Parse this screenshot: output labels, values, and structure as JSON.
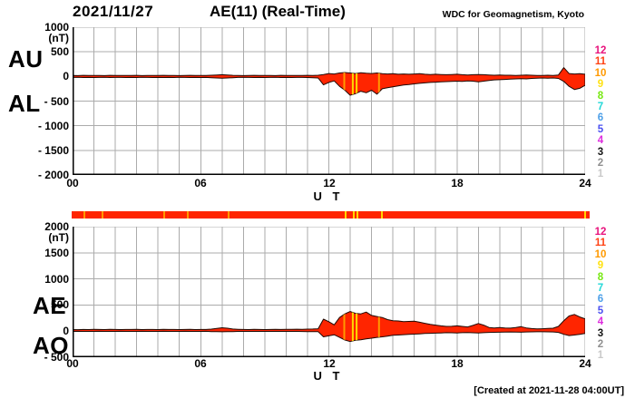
{
  "header": {
    "date": "2021/11/27",
    "title": "AE(11) (Real-Time)",
    "source": "WDC for Geomagnetism, Kyoto"
  },
  "footer": {
    "created": "[Created at 2021-11-28 04:00UT]"
  },
  "colors": {
    "trace_fill": "#FF2500",
    "trace_outline": "#1E0800",
    "grid": "#ABABAB",
    "axis": "#000000",
    "stripe_orange": "#FF9900",
    "stripe_yellow": "#FFD700",
    "availability_bar": "#FF2500"
  },
  "panels": {
    "top": {
      "left_labels": [
        "AU",
        "AL"
      ],
      "y_unit": "(nT)",
      "y_ticks": [
        "1000",
        "500",
        "0",
        "-500",
        "-1000",
        "-1500",
        "-2000"
      ],
      "x_ticks": [
        "00",
        "06",
        "12",
        "18",
        "24"
      ],
      "x_label": "U T"
    },
    "bottom": {
      "left_labels": [
        "AE",
        "AO"
      ],
      "y_unit": "(nT)",
      "y_ticks": [
        "2000",
        "1500",
        "1000",
        "500",
        "0",
        "-500"
      ],
      "x_ticks": [
        "00",
        "06",
        "12",
        "18",
        "24"
      ],
      "x_label": "U T"
    }
  },
  "station_scale": {
    "entries": [
      {
        "n": "12",
        "color": "#E8127C"
      },
      {
        "n": "11",
        "color": "#FF4112"
      },
      {
        "n": "10",
        "color": "#FF9900"
      },
      {
        "n": "9",
        "color": "#FFE212"
      },
      {
        "n": "8",
        "color": "#77E812"
      },
      {
        "n": "7",
        "color": "#22D7D7"
      },
      {
        "n": "6",
        "color": "#4C9FE8"
      },
      {
        "n": "5",
        "color": "#4B50F0"
      },
      {
        "n": "4",
        "color": "#DD2BDD"
      },
      {
        "n": "3",
        "color": "#141414"
      },
      {
        "n": "2",
        "color": "#8F8F8F"
      },
      {
        "n": "1",
        "color": "#C9C9C9"
      }
    ]
  },
  "plot_stripes": [
    {
      "h": 12.72,
      "color": "#FF9900"
    },
    {
      "h": 13.12,
      "color": "#FFD700"
    },
    {
      "h": 13.3,
      "color": "#FFD700"
    },
    {
      "h": 14.35,
      "color": "#FF9900"
    }
  ],
  "availability_stripes": [
    {
      "h": 0.45,
      "color": "#FF9900"
    },
    {
      "h": 1.3,
      "color": "#FF9900"
    },
    {
      "h": 4.2,
      "color": "#FF9900"
    },
    {
      "h": 5.3,
      "color": "#FF9900"
    },
    {
      "h": 7.2,
      "color": "#FF9900"
    },
    {
      "h": 12.7,
      "color": "#FFD700"
    },
    {
      "h": 13.1,
      "color": "#FFD700"
    },
    {
      "h": 13.25,
      "color": "#FFD700"
    },
    {
      "h": 14.4,
      "color": "#FFD700"
    },
    {
      "h": 23.9,
      "color": "#FFD700"
    }
  ],
  "chart_data": {
    "type": "area",
    "title": "AE(11) (Real-Time) 2021/11/27",
    "xlabel": "U T",
    "x_unit": "hours UT",
    "x_range": [
      0,
      24
    ],
    "x_step_hours": 0.25,
    "x_tick_labels": [
      "00",
      "06",
      "12",
      "18",
      "24"
    ],
    "grid": true,
    "station_count_nominal": 11,
    "panels": [
      {
        "name": "AU / AL",
        "ylabel": "nT",
        "ylim": [
          -2000,
          1000
        ],
        "yticks": [
          1000,
          500,
          0,
          -500,
          -1000,
          -1500,
          -2000
        ],
        "fill_between_series": true,
        "series": [
          {
            "name": "AU",
            "values": [
              20,
              18,
              22,
              19,
              21,
              20,
              18,
              22,
              20,
              19,
              21,
              20,
              22,
              18,
              20,
              21,
              19,
              22,
              20,
              21,
              18,
              20,
              22,
              19,
              21,
              20,
              25,
              30,
              35,
              30,
              22,
              20,
              18,
              20,
              22,
              19,
              21,
              20,
              18,
              22,
              20,
              21,
              19,
              20,
              22,
              20,
              25,
              40,
              60,
              50,
              70,
              80,
              70,
              60,
              75,
              65,
              60,
              70,
              55,
              50,
              55,
              45,
              50,
              45,
              50,
              55,
              45,
              40,
              45,
              40,
              35,
              40,
              45,
              35,
              30,
              35,
              40,
              35,
              30,
              25,
              30,
              25,
              25,
              20,
              25,
              30,
              25,
              20,
              20,
              25,
              20,
              30,
              180,
              60,
              50,
              55,
              45
            ]
          },
          {
            "name": "AL",
            "values": [
              -20,
              -18,
              -22,
              -19,
              -21,
              -20,
              -18,
              -22,
              -20,
              -19,
              -21,
              -20,
              -22,
              -18,
              -20,
              -21,
              -19,
              -22,
              -20,
              -21,
              -18,
              -20,
              -22,
              -19,
              -21,
              -20,
              -25,
              -30,
              -35,
              -30,
              -25,
              -20,
              -18,
              -20,
              -22,
              -19,
              -21,
              -20,
              -18,
              -22,
              -20,
              -21,
              -19,
              -20,
              -22,
              -25,
              -30,
              -170,
              -120,
              -90,
              -200,
              -280,
              -380,
              -350,
              -300,
              -330,
              -280,
              -360,
              -250,
              -230,
              -210,
              -190,
              -175,
              -165,
              -150,
              -140,
              -130,
              -120,
              -115,
              -110,
              -105,
              -100,
              -95,
              -100,
              -90,
              -95,
              -110,
              -95,
              -80,
              -70,
              -65,
              -60,
              -55,
              -50,
              -45,
              -50,
              -40,
              -35,
              -30,
              -35,
              -30,
              -40,
              -100,
              -200,
              -265,
              -240,
              -180
            ]
          }
        ]
      },
      {
        "name": "AE / AO",
        "ylabel": "nT",
        "ylim": [
          -500,
          2000
        ],
        "yticks": [
          2000,
          1500,
          1000,
          500,
          0,
          -500
        ],
        "fill_between_series": true,
        "series": [
          {
            "name": "AE",
            "values": [
              30,
              28,
              32,
              30,
              33,
              31,
              29,
              33,
              31,
              30,
              32,
              31,
              33,
              29,
              31,
              32,
              30,
              33,
              31,
              32,
              29,
              31,
              33,
              30,
              32,
              31,
              38,
              50,
              65,
              55,
              40,
              35,
              32,
              30,
              33,
              31,
              30,
              32,
              34,
              32,
              35,
              33,
              36,
              34,
              38,
              40,
              45,
              230,
              180,
              120,
              260,
              330,
              375,
              340,
              330,
              365,
              300,
              280,
              260,
              220,
              200,
              195,
              180,
              185,
              190,
              170,
              150,
              130,
              115,
              100,
              90,
              92,
              100,
              90,
              80,
              110,
              145,
              115,
              70,
              60,
              70,
              60,
              58,
              70,
              85,
              60,
              48,
              42,
              45,
              50,
              55,
              90,
              200,
              290,
              320,
              270,
              235
            ]
          },
          {
            "name": "AO",
            "values": [
              -5,
              -4,
              -6,
              -5,
              -5,
              -4,
              -6,
              -5,
              -5,
              -4,
              -6,
              -5,
              -5,
              -4,
              -6,
              -5,
              -5,
              -4,
              -6,
              -5,
              -5,
              -4,
              -6,
              -5,
              -5,
              -4,
              -8,
              -10,
              -12,
              -10,
              -8,
              -6,
              -5,
              -5,
              -6,
              -5,
              -5,
              -6,
              -5,
              -6,
              -5,
              -6,
              -6,
              -7,
              -8,
              -9,
              -10,
              -110,
              -90,
              -70,
              -120,
              -170,
              -200,
              -175,
              -165,
              -150,
              -135,
              -120,
              -110,
              -95,
              -80,
              -75,
              -68,
              -62,
              -58,
              -52,
              -46,
              -42,
              -38,
              -34,
              -30,
              -32,
              -35,
              -30,
              -28,
              -32,
              -35,
              -30,
              -25,
              -22,
              -20,
              -18,
              -16,
              -18,
              -20,
              -16,
              -14,
              -12,
              -12,
              -14,
              -15,
              -25,
              -60,
              -85,
              -75,
              -60,
              -45
            ]
          }
        ]
      }
    ]
  }
}
